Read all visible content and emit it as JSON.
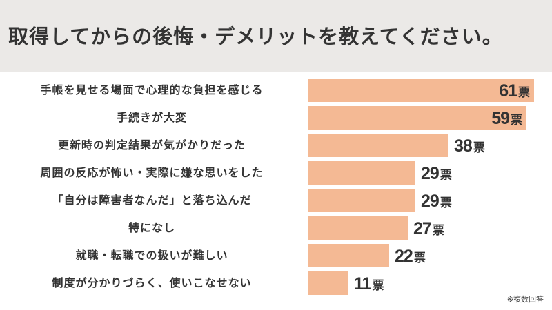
{
  "header": {
    "title": "取得してからの後悔・デメリットを教えてください。"
  },
  "colors": {
    "header_bg": "#ebe9e7",
    "bar": "#f4b994",
    "text": "#333333"
  },
  "unit": "票",
  "footnote": "※複数回答",
  "chart_data": {
    "type": "bar",
    "orientation": "horizontal",
    "title": "取得してからの後悔・デメリットを教えてください。",
    "categories": [
      "手帳を見せる場面で心理的な負担を感じる",
      "手続きが大変",
      "更新時の判定結果が気がかりだった",
      "周囲の反応が怖い・実際に嫌な思いをした",
      "「自分は障害者なんだ」と落ち込んだ",
      "特になし",
      "就職・転職での扱いが難しい",
      "制度が分かりづらく、使いこなせない"
    ],
    "values": [
      61,
      59,
      38,
      29,
      29,
      27,
      22,
      11
    ],
    "value_labels": [
      "61票",
      "59票",
      "38票",
      "29票",
      "29票",
      "27票",
      "22票",
      "11票"
    ],
    "xlabel": "",
    "ylabel": "",
    "grid": false,
    "legend": null,
    "annotation": "※複数回答"
  },
  "rows": [
    {
      "label": "手帳を見せる場面で心理的な負担を感じる",
      "value": "61"
    },
    {
      "label": "手続きが大変",
      "value": "59"
    },
    {
      "label": "更新時の判定結果が気がかりだった",
      "value": "38"
    },
    {
      "label": "周囲の反応が怖い・実際に嫌な思いをした",
      "value": "29"
    },
    {
      "label": "「自分は障害者なんだ」と落ち込んだ",
      "value": "29"
    },
    {
      "label": "特になし",
      "value": "27"
    },
    {
      "label": "就職・転職での扱いが難しい",
      "value": "22"
    },
    {
      "label": "制度が分かりづらく、使いこなせない",
      "value": "11"
    }
  ]
}
